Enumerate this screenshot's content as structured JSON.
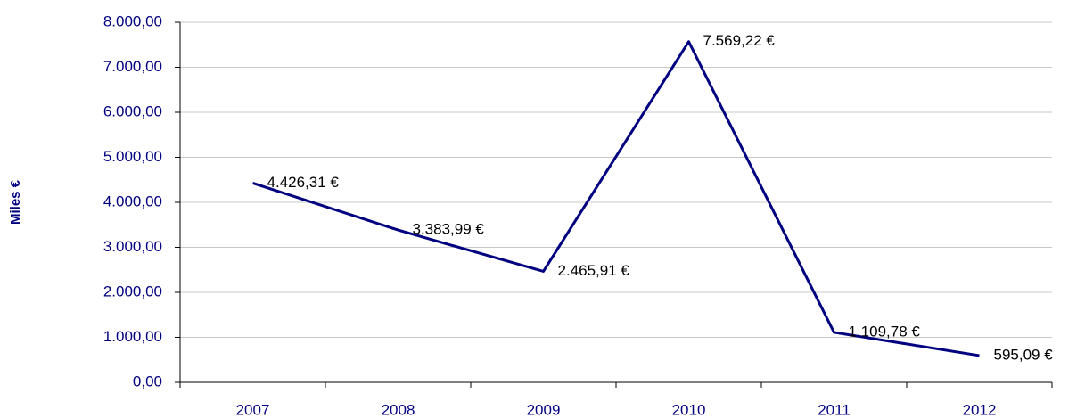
{
  "chart_data": {
    "type": "line",
    "y_label": "Miles €",
    "categories": [
      "2007",
      "2008",
      "2009",
      "2010",
      "2011",
      "2012"
    ],
    "series": [
      {
        "name": "Miles €",
        "color": "#000080",
        "values": [
          4426.31,
          3383.99,
          2465.91,
          7569.22,
          1109.78,
          595.09
        ],
        "value_labels": [
          "4.426,31 €",
          "3.383,99 €",
          "2.465,91 €",
          "7.569,22 €",
          "1.109,78 €",
          "595,09 €"
        ]
      }
    ],
    "ylim": [
      0,
      8000
    ],
    "yticks": [
      {
        "value": 0,
        "label": "0,00"
      },
      {
        "value": 1000,
        "label": "1.000,00"
      },
      {
        "value": 2000,
        "label": "2.000,00"
      },
      {
        "value": 3000,
        "label": "3.000,00"
      },
      {
        "value": 4000,
        "label": "4.000,00"
      },
      {
        "value": 5000,
        "label": "5.000,00"
      },
      {
        "value": 6000,
        "label": "6.000,00"
      },
      {
        "value": 7000,
        "label": "7.000,00"
      },
      {
        "value": 8000,
        "label": "8.000,00"
      }
    ],
    "grid": true
  }
}
